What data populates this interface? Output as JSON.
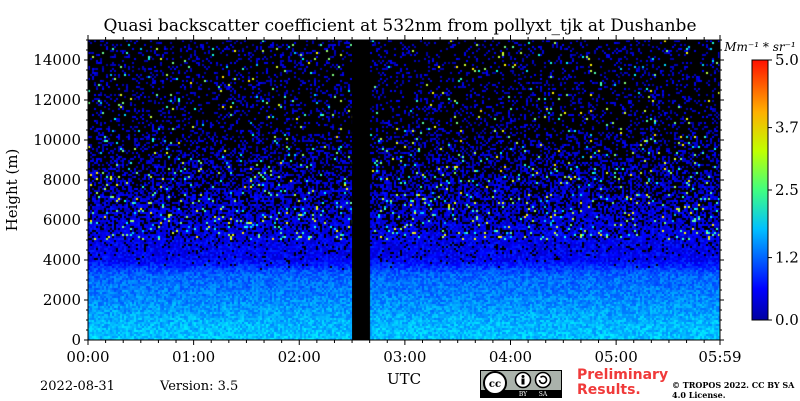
{
  "chart_data": {
    "type": "heatmap",
    "title": "Quasi backscatter coefficient at 532nm from pollyxt_tjk at Dushanbe",
    "xlabel": "UTC",
    "ylabel": "Height (m)",
    "x_ticks": [
      "00:00",
      "01:00",
      "02:00",
      "03:00",
      "04:00",
      "05:00",
      "05:59"
    ],
    "y_ticks": [
      0,
      2000,
      4000,
      6000,
      8000,
      10000,
      12000,
      14000
    ],
    "xlim": [
      "00:00",
      "05:59"
    ],
    "ylim": [
      0,
      15000
    ],
    "colorbar": {
      "unit_label": "Mm⁻¹ * sr⁻¹",
      "min": 0.0,
      "max": 5.0,
      "ticks": [
        "0.0",
        "1.2",
        "2.5",
        "3.7",
        "5.0"
      ],
      "colormap": "jet"
    },
    "data_gap": {
      "start": "02:30",
      "end": "02:40"
    },
    "profile": [
      {
        "height": 0,
        "value": 1.6
      },
      {
        "height": 900,
        "value": 1.5
      },
      {
        "height": 2000,
        "value": 1.3
      },
      {
        "height": 3300,
        "value": 1.1
      },
      {
        "height": 4000,
        "value": 0.6
      },
      {
        "height": 6000,
        "value": 0.5
      },
      {
        "height": 10000,
        "value": 0.4
      },
      {
        "height": 14000,
        "value": 0.4
      }
    ]
  },
  "footer": {
    "date": "2022-08-31",
    "version": "Version: 3.5",
    "preliminary": "Preliminary Results.",
    "copyright": "© TROPOS 2022. CC BY SA 4.0 License."
  },
  "badge": {
    "cc": "cc",
    "by": "BY",
    "sa": "SA"
  }
}
